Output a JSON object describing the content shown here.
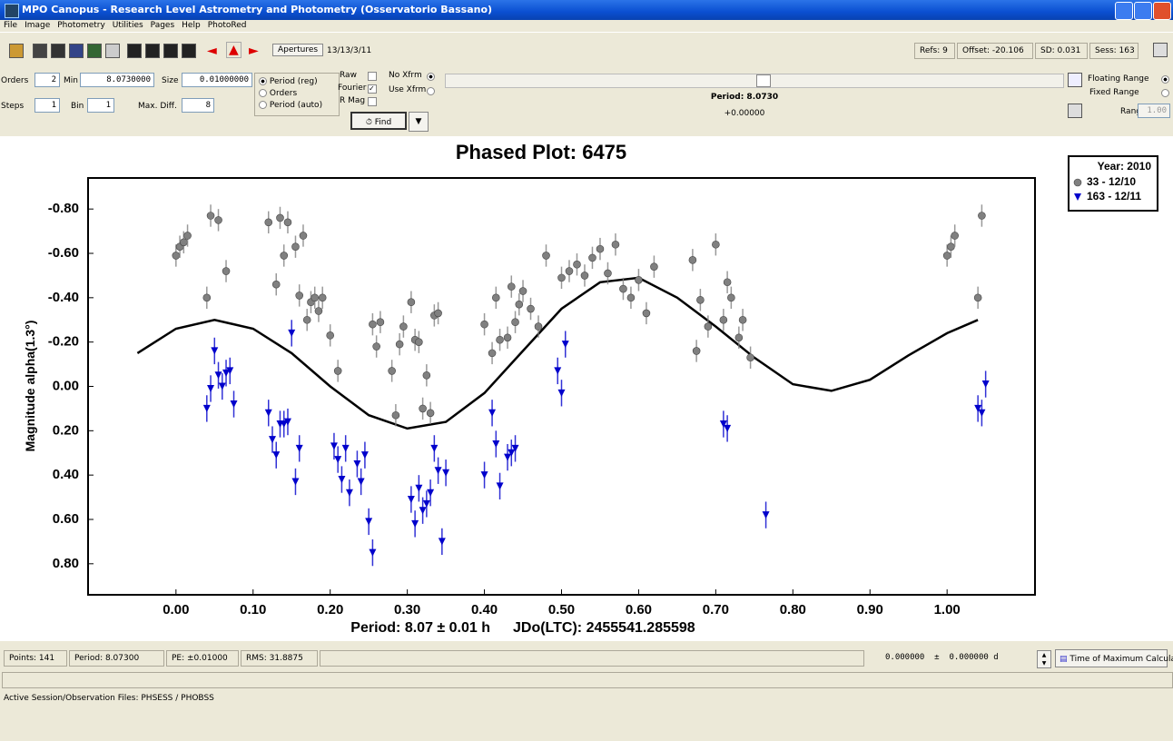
{
  "window": {
    "title": "MPO Canopus - Research Level Astrometry and Photometry (Osservatorio Bassano)"
  },
  "menu": [
    "File",
    "Image",
    "Photometry",
    "Utilities",
    "Pages",
    "Help",
    "PhotoRed"
  ],
  "toolbar": {
    "apertures": "Apertures",
    "session_date": "13/13/3/11",
    "refs": "Refs: 9",
    "offset": "Offset: -20.106",
    "sd": "SD: 0.031",
    "sess": "Sess: 163"
  },
  "controls": {
    "orders_label": "Orders",
    "orders": "2",
    "min_label": "Min",
    "min": "8.0730000",
    "size_label": "Size",
    "size": "0.01000000",
    "steps_label": "Steps",
    "steps": "1",
    "bin_label": "Bin",
    "bin": "1",
    "max_diff_label": "Max. Diff.",
    "max_diff": "8",
    "mode_options": [
      "Period (reg)",
      "Orders",
      "Period (auto)"
    ],
    "raw": "Raw",
    "fourier": "Fourier",
    "r_mag": "R Mag",
    "no_xfrm": "No Xfrm",
    "use_xfrm": "Use Xfrm",
    "find": "Find",
    "period": "Period: 8.0730",
    "offset": "+0.00000",
    "floating_range": "Floating Range",
    "fixed_range": "Fixed Range",
    "range_label": "Range",
    "range": "1.00"
  },
  "status": {
    "points": "Points: 141",
    "period": "Period: 8.07300",
    "pe": "PE: ±0.01000",
    "rms": "RMS: 31.8875",
    "tmax": "0.000000  ±  0.000000 d",
    "tmax_button": "Time of Maximum Calculator",
    "files": "Active Session/Observation Files: PHSESS / PHOBSS"
  },
  "chart_data": {
    "type": "scatter",
    "title": "Phased Plot: 6475",
    "x_label": "Period: 8.07 ± 0.01 h",
    "x_annotation": "JDo(LTC): 2455541.285598",
    "y_label": "Magnitude alpha(1.3°)",
    "legend_title": "Year: 2010",
    "xlim": [
      -0.114,
      1.114
    ],
    "ylim": [
      0.94,
      -0.94
    ],
    "xticks": [
      {
        "value": 0,
        "label": "0.00"
      },
      {
        "value": 0.1,
        "label": "0.10"
      },
      {
        "value": 0.2,
        "label": "0.20"
      },
      {
        "value": 0.3,
        "label": "0.30"
      },
      {
        "value": 0.4,
        "label": "0.40"
      },
      {
        "value": 0.5,
        "label": "0.50"
      },
      {
        "value": 0.6,
        "label": "0.60"
      },
      {
        "value": 0.7,
        "label": "0.70"
      },
      {
        "value": 0.8,
        "label": "0.80"
      },
      {
        "value": 0.9,
        "label": "0.90"
      },
      {
        "value": 1,
        "label": "1.00"
      }
    ],
    "yticks": [
      {
        "value": -0.8,
        "label": "-0.80"
      },
      {
        "value": -0.6,
        "label": "-0.60"
      },
      {
        "value": -0.4,
        "label": "-0.40"
      },
      {
        "value": -0.2,
        "label": "-0.20"
      },
      {
        "value": 0,
        "label": "0.00"
      },
      {
        "value": 0.2,
        "label": "0.20"
      },
      {
        "value": 0.4,
        "label": "0.40"
      },
      {
        "value": 0.6,
        "label": "0.60"
      },
      {
        "value": 0.8,
        "label": "0.80"
      }
    ],
    "series": [
      {
        "name": "33 - 12/10",
        "color": "#808080",
        "marker": "circle",
        "error": 0.05,
        "x": [
          0.0,
          0.005,
          0.01,
          0.015,
          0.04,
          0.045,
          0.055,
          0.065,
          0.12,
          0.13,
          0.135,
          0.14,
          0.145,
          0.155,
          0.16,
          0.165,
          0.17,
          0.175,
          0.18,
          0.185,
          0.19,
          0.2,
          0.21,
          0.255,
          0.26,
          0.265,
          0.28,
          0.285,
          0.29,
          0.295,
          0.305,
          0.31,
          0.315,
          0.32,
          0.325,
          0.33,
          0.335,
          0.34,
          0.4,
          0.41,
          0.415,
          0.42,
          0.43,
          0.435,
          0.44,
          0.445,
          0.45,
          0.46,
          0.47,
          0.48,
          0.5,
          0.51,
          0.52,
          0.53,
          0.54,
          0.55,
          0.56,
          0.57,
          0.58,
          0.59,
          0.6,
          0.61,
          0.62,
          0.67,
          0.675,
          0.68,
          0.69,
          0.7,
          0.71,
          0.715,
          0.72,
          0.73,
          0.735,
          0.745,
          1.0,
          1.005,
          1.01,
          1.04,
          1.045
        ],
        "values": [
          -0.59,
          -0.63,
          -0.65,
          -0.68,
          -0.4,
          -0.77,
          -0.75,
          -0.52,
          -0.74,
          -0.46,
          -0.76,
          -0.59,
          -0.74,
          -0.63,
          -0.41,
          -0.68,
          -0.3,
          -0.38,
          -0.4,
          -0.34,
          -0.4,
          -0.23,
          -0.07,
          -0.28,
          -0.18,
          -0.29,
          -0.07,
          0.13,
          -0.19,
          -0.27,
          -0.38,
          -0.21,
          -0.2,
          0.1,
          -0.05,
          0.12,
          -0.32,
          -0.33,
          -0.28,
          -0.15,
          -0.4,
          -0.21,
          -0.22,
          -0.45,
          -0.29,
          -0.37,
          -0.43,
          -0.35,
          -0.27,
          -0.59,
          -0.49,
          -0.52,
          -0.55,
          -0.5,
          -0.58,
          -0.62,
          -0.51,
          -0.64,
          -0.44,
          -0.4,
          -0.48,
          -0.33,
          -0.54,
          -0.57,
          -0.16,
          -0.39,
          -0.27,
          -0.64,
          -0.3,
          -0.47,
          -0.4,
          -0.22,
          -0.3,
          -0.13,
          -0.59,
          -0.63,
          -0.68,
          -0.4,
          -0.77
        ]
      },
      {
        "name": "163 - 12/11",
        "color": "#0000cc",
        "marker": "triangle-down",
        "error": 0.06,
        "x": [
          0.04,
          0.045,
          0.05,
          0.055,
          0.06,
          0.065,
          0.07,
          0.075,
          0.12,
          0.125,
          0.13,
          0.135,
          0.14,
          0.145,
          0.15,
          0.155,
          0.16,
          0.205,
          0.21,
          0.215,
          0.22,
          0.225,
          0.235,
          0.24,
          0.245,
          0.25,
          0.255,
          0.305,
          0.31,
          0.315,
          0.32,
          0.325,
          0.33,
          0.335,
          0.34,
          0.345,
          0.35,
          0.4,
          0.41,
          0.415,
          0.42,
          0.43,
          0.435,
          0.44,
          0.495,
          0.5,
          0.505,
          0.71,
          0.715,
          0.765,
          1.04,
          1.045,
          1.05
        ],
        "values": [
          0.1,
          0.01,
          -0.16,
          -0.05,
          0.0,
          -0.06,
          -0.07,
          0.08,
          0.12,
          0.24,
          0.31,
          0.17,
          0.17,
          0.16,
          -0.24,
          0.43,
          0.28,
          0.27,
          0.33,
          0.42,
          0.28,
          0.48,
          0.35,
          0.43,
          0.31,
          0.61,
          0.75,
          0.51,
          0.62,
          0.46,
          0.56,
          0.53,
          0.48,
          0.28,
          0.38,
          0.7,
          0.39,
          0.4,
          0.12,
          0.26,
          0.45,
          0.32,
          0.3,
          0.28,
          -0.07,
          0.03,
          -0.19,
          0.17,
          0.19,
          0.58,
          0.1,
          0.12,
          -0.01
        ]
      }
    ],
    "fit": {
      "color": "#000000",
      "x": [
        -0.05,
        0.0,
        0.05,
        0.1,
        0.15,
        0.2,
        0.25,
        0.3,
        0.35,
        0.4,
        0.45,
        0.5,
        0.55,
        0.6,
        0.65,
        0.7,
        0.75,
        0.8,
        0.85,
        0.9,
        0.95,
        1.0,
        1.04
      ],
      "values": [
        -0.15,
        -0.26,
        -0.3,
        -0.26,
        -0.15,
        0.0,
        0.13,
        0.19,
        0.16,
        0.03,
        -0.16,
        -0.35,
        -0.47,
        -0.49,
        -0.4,
        -0.27,
        -0.13,
        -0.01,
        0.02,
        -0.03,
        -0.14,
        -0.24,
        -0.3
      ]
    }
  }
}
